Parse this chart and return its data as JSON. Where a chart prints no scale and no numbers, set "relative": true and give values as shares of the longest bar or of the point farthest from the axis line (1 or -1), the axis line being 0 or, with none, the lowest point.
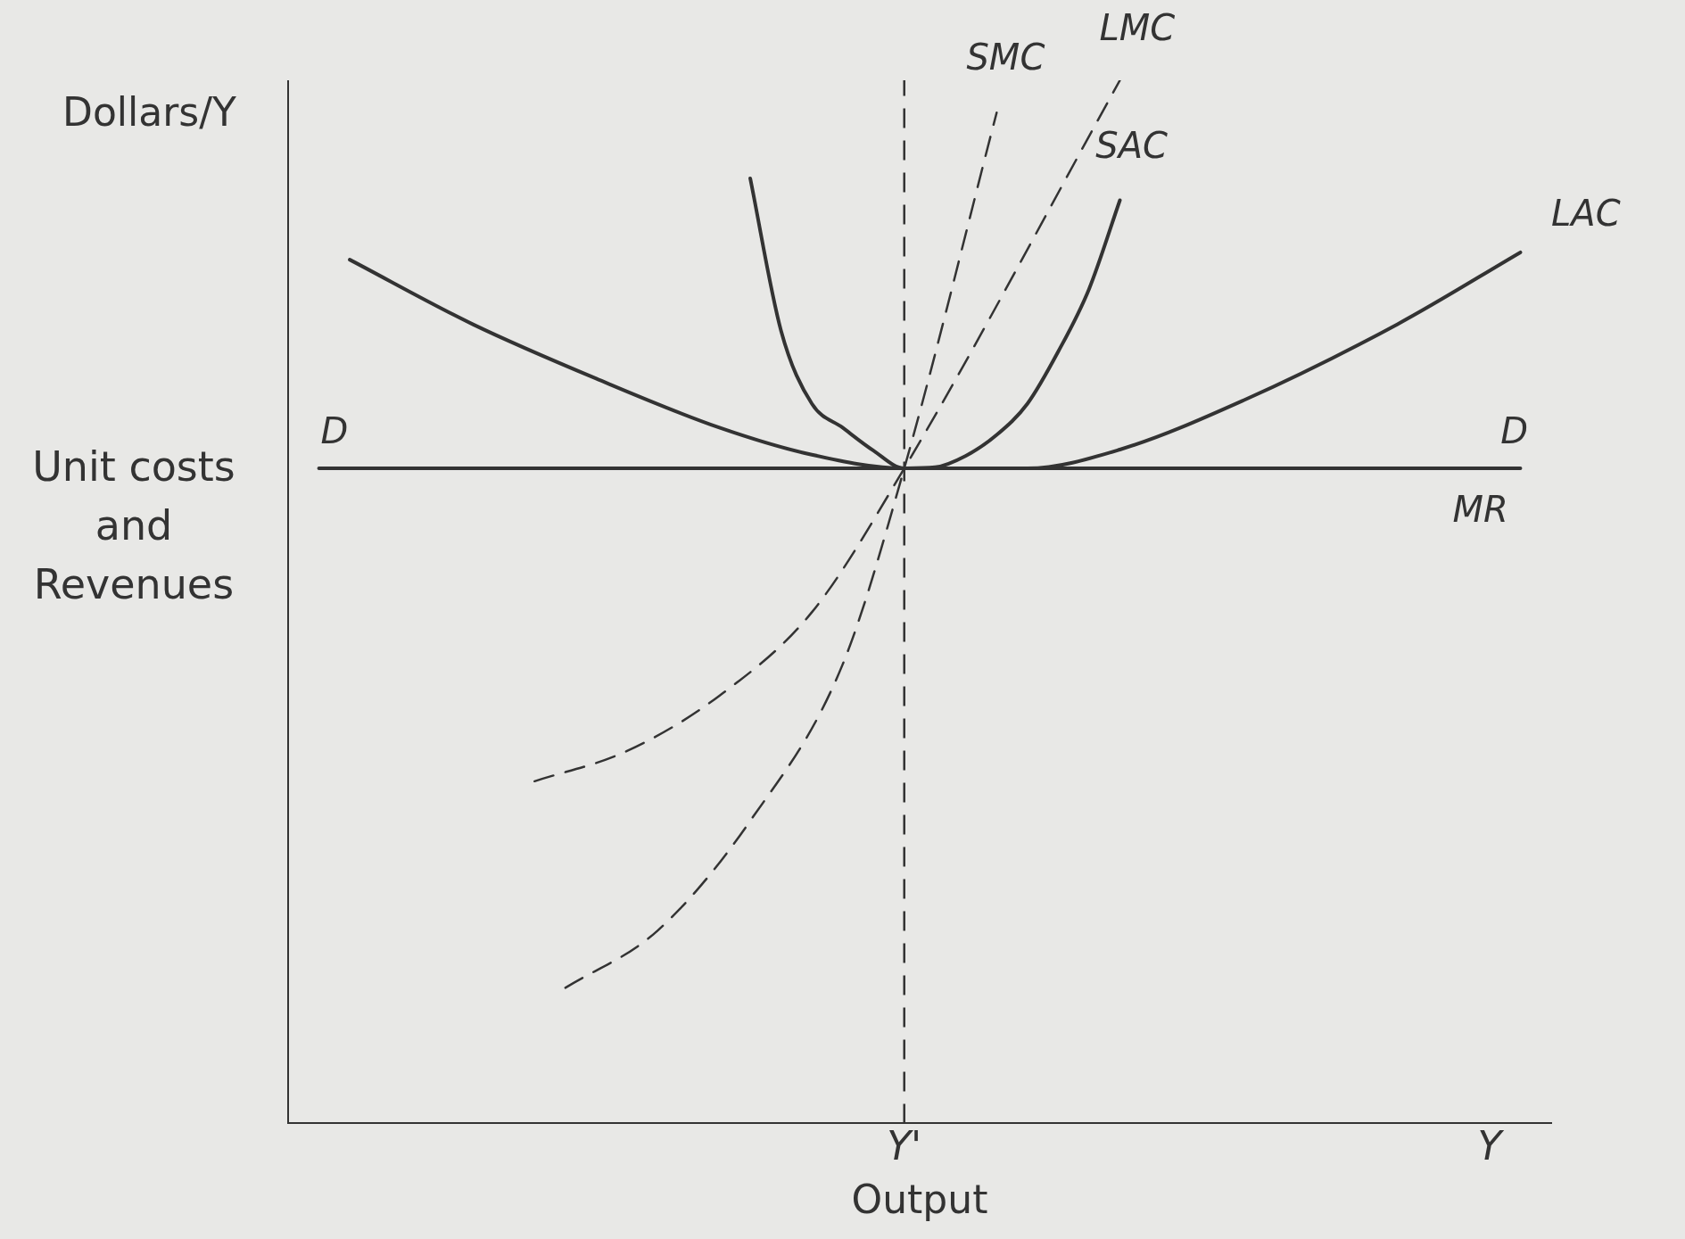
{
  "chart_data": {
    "type": "line",
    "relative": true,
    "xlabel": "Output",
    "ylabel": "Unit costs and Revenues",
    "legend": false,
    "grid": false,
    "marker": "none",
    "categories": [
      null,
      null,
      null,
      null,
      null,
      null,
      null,
      null,
      null,
      null,
      null,
      null,
      null,
      null,
      null,
      null,
      null,
      null,
      null,
      null,
      "Y'",
      null,
      null,
      null,
      null,
      null,
      null,
      null,
      null,
      null,
      null,
      null,
      null,
      null,
      null,
      null,
      null,
      null,
      null,
      "Y",
      null,
      null
    ],
    "annotations": [
      "Dollars/Y",
      "D",
      "D",
      "MR"
    ],
    "ref_lines": [
      {
        "axis": "x",
        "value": "Y'",
        "line_style": "dashed",
        "color": "#333333"
      }
    ],
    "series": [
      {
        "name": "LAC",
        "color": "#333333",
        "line_style": "solid",
        "values": [
          null,
          null,
          0.828,
          null,
          null,
          null,
          0.766,
          null,
          null,
          null,
          0.714,
          null,
          null,
          null,
          0.667,
          null,
          null,
          0.641,
          null,
          null,
          0.628,
          null,
          null,
          null,
          0.628,
          null,
          null,
          0.646,
          null,
          null,
          null,
          0.693,
          null,
          null,
          null,
          null,
          0.766,
          null,
          null,
          null,
          0.835,
          null
        ]
      },
      {
        "name": "SAC",
        "color": "#333333",
        "line_style": "solid",
        "values": [
          null,
          null,
          null,
          null,
          null,
          null,
          null,
          null,
          null,
          null,
          null,
          null,
          null,
          null,
          null,
          0.906,
          0.76,
          0.69,
          0.667,
          0.645,
          0.628,
          0.629,
          0.64,
          0.66,
          0.69,
          0.74,
          0.8,
          0.885,
          null,
          null,
          null,
          null,
          null,
          null,
          null,
          null,
          null,
          null,
          null,
          null,
          null,
          null
        ]
      },
      {
        "name": "LMC",
        "color": "#333333",
        "line_style": "dashed",
        "values": [
          null,
          null,
          null,
          null,
          null,
          null,
          null,
          null,
          0.328,
          null,
          null,
          0.357,
          null,
          null,
          0.41,
          null,
          null,
          0.49,
          null,
          null,
          0.628,
          null,
          null,
          null,
          null,
          null,
          null,
          1.0,
          null,
          null,
          null,
          null,
          null,
          null,
          null,
          null,
          null,
          null,
          null,
          null,
          null,
          null
        ]
      },
      {
        "name": "SMC",
        "color": "#333333",
        "line_style": "dashed",
        "values": [
          null,
          null,
          null,
          null,
          null,
          null,
          null,
          null,
          null,
          0.13,
          null,
          null,
          0.185,
          null,
          null,
          0.29,
          null,
          null,
          0.44,
          null,
          0.628,
          null,
          null,
          0.969,
          null,
          null,
          null,
          null,
          null,
          null,
          null,
          null,
          null,
          null,
          null,
          null,
          null,
          null,
          null,
          null,
          null,
          null
        ]
      },
      {
        "color": "#333333",
        "line_style": "solid",
        "values": [
          null,
          0.628,
          null,
          null,
          null,
          null,
          null,
          null,
          null,
          null,
          null,
          null,
          null,
          null,
          null,
          null,
          null,
          null,
          null,
          null,
          null,
          null,
          null,
          null,
          null,
          null,
          null,
          null,
          null,
          null,
          null,
          null,
          null,
          null,
          null,
          null,
          null,
          null,
          null,
          null,
          0.628,
          null
        ]
      }
    ]
  }
}
